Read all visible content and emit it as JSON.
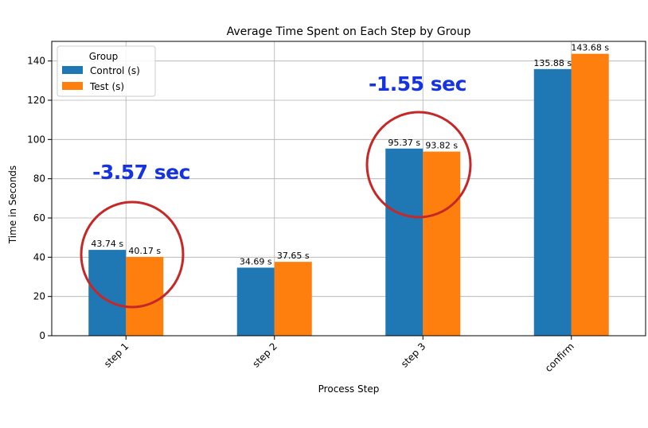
{
  "chart_data": {
    "type": "bar",
    "title": "Average Time Spent on Each Step by Group",
    "xlabel": "Process Step",
    "ylabel": "Time in Seconds",
    "categories": [
      "step 1",
      "step 2",
      "step 3",
      "confirm"
    ],
    "series": [
      {
        "name": "Control (s)",
        "values": [
          43.74,
          34.69,
          95.37,
          135.88
        ],
        "labels": [
          "43.74 s",
          "34.69 s",
          "95.37 s",
          "135.88 s"
        ],
        "color": "#1f77b4"
      },
      {
        "name": "Test (s)",
        "values": [
          40.17,
          37.65,
          93.82,
          143.68
        ],
        "labels": [
          "40.17 s",
          "37.65 s",
          "93.82 s",
          "143.68 s"
        ],
        "color": "#ff7f0e"
      }
    ],
    "ylim": [
      0,
      150
    ],
    "yticks": [
      0,
      20,
      40,
      60,
      80,
      100,
      120,
      140
    ],
    "grid": true,
    "legend": {
      "title": "Group",
      "placement": "top-left"
    },
    "annotations": [
      {
        "text": "-3.57 sec",
        "category": "step 1",
        "color": "#1533e0",
        "circle_color": "#c62828"
      },
      {
        "text": "-1.55 sec",
        "category": "step 3",
        "color": "#1533e0",
        "circle_color": "#c62828"
      }
    ]
  }
}
